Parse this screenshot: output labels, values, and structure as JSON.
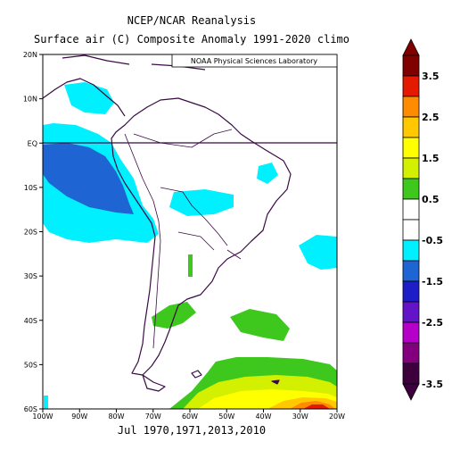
{
  "header": {
    "title_line1": "NCEP/NCAR Reanalysis",
    "title_line2": "Surface air (C) Composite Anomaly 1991-2020 climo"
  },
  "map": {
    "credit": "NOAA Physical Sciences Laboratory",
    "lat_labels": [
      "20N",
      "10N",
      "EQ",
      "10S",
      "20S",
      "30S",
      "40S",
      "50S",
      "60S"
    ],
    "lon_labels": [
      "100W",
      "90W",
      "80W",
      "70W",
      "60W",
      "50W",
      "40W",
      "30W",
      "20W"
    ],
    "extent": {
      "lon_min": -100,
      "lon_max": -20,
      "lat_min": -60,
      "lat_max": 20
    },
    "coast_color": "#3b0a45",
    "equator_line": true
  },
  "footer": {
    "composite_years": "Jul 1970,1971,2013,2010"
  },
  "colorbar": {
    "labels": [
      "3.5",
      "2.5",
      "1.5",
      "0.5",
      "-0.5",
      "-1.5",
      "-2.5",
      "-3.5"
    ],
    "colors": [
      "#800000",
      "#e31a00",
      "#ff8c00",
      "#ffc800",
      "#ffff00",
      "#d2f000",
      "#3ec81e",
      "#ffffff",
      "#ffffff",
      "#00f0ff",
      "#1e64d2",
      "#1e1ec8",
      "#6414c8",
      "#b400c8",
      "#82007d",
      "#3c003c"
    ]
  }
}
